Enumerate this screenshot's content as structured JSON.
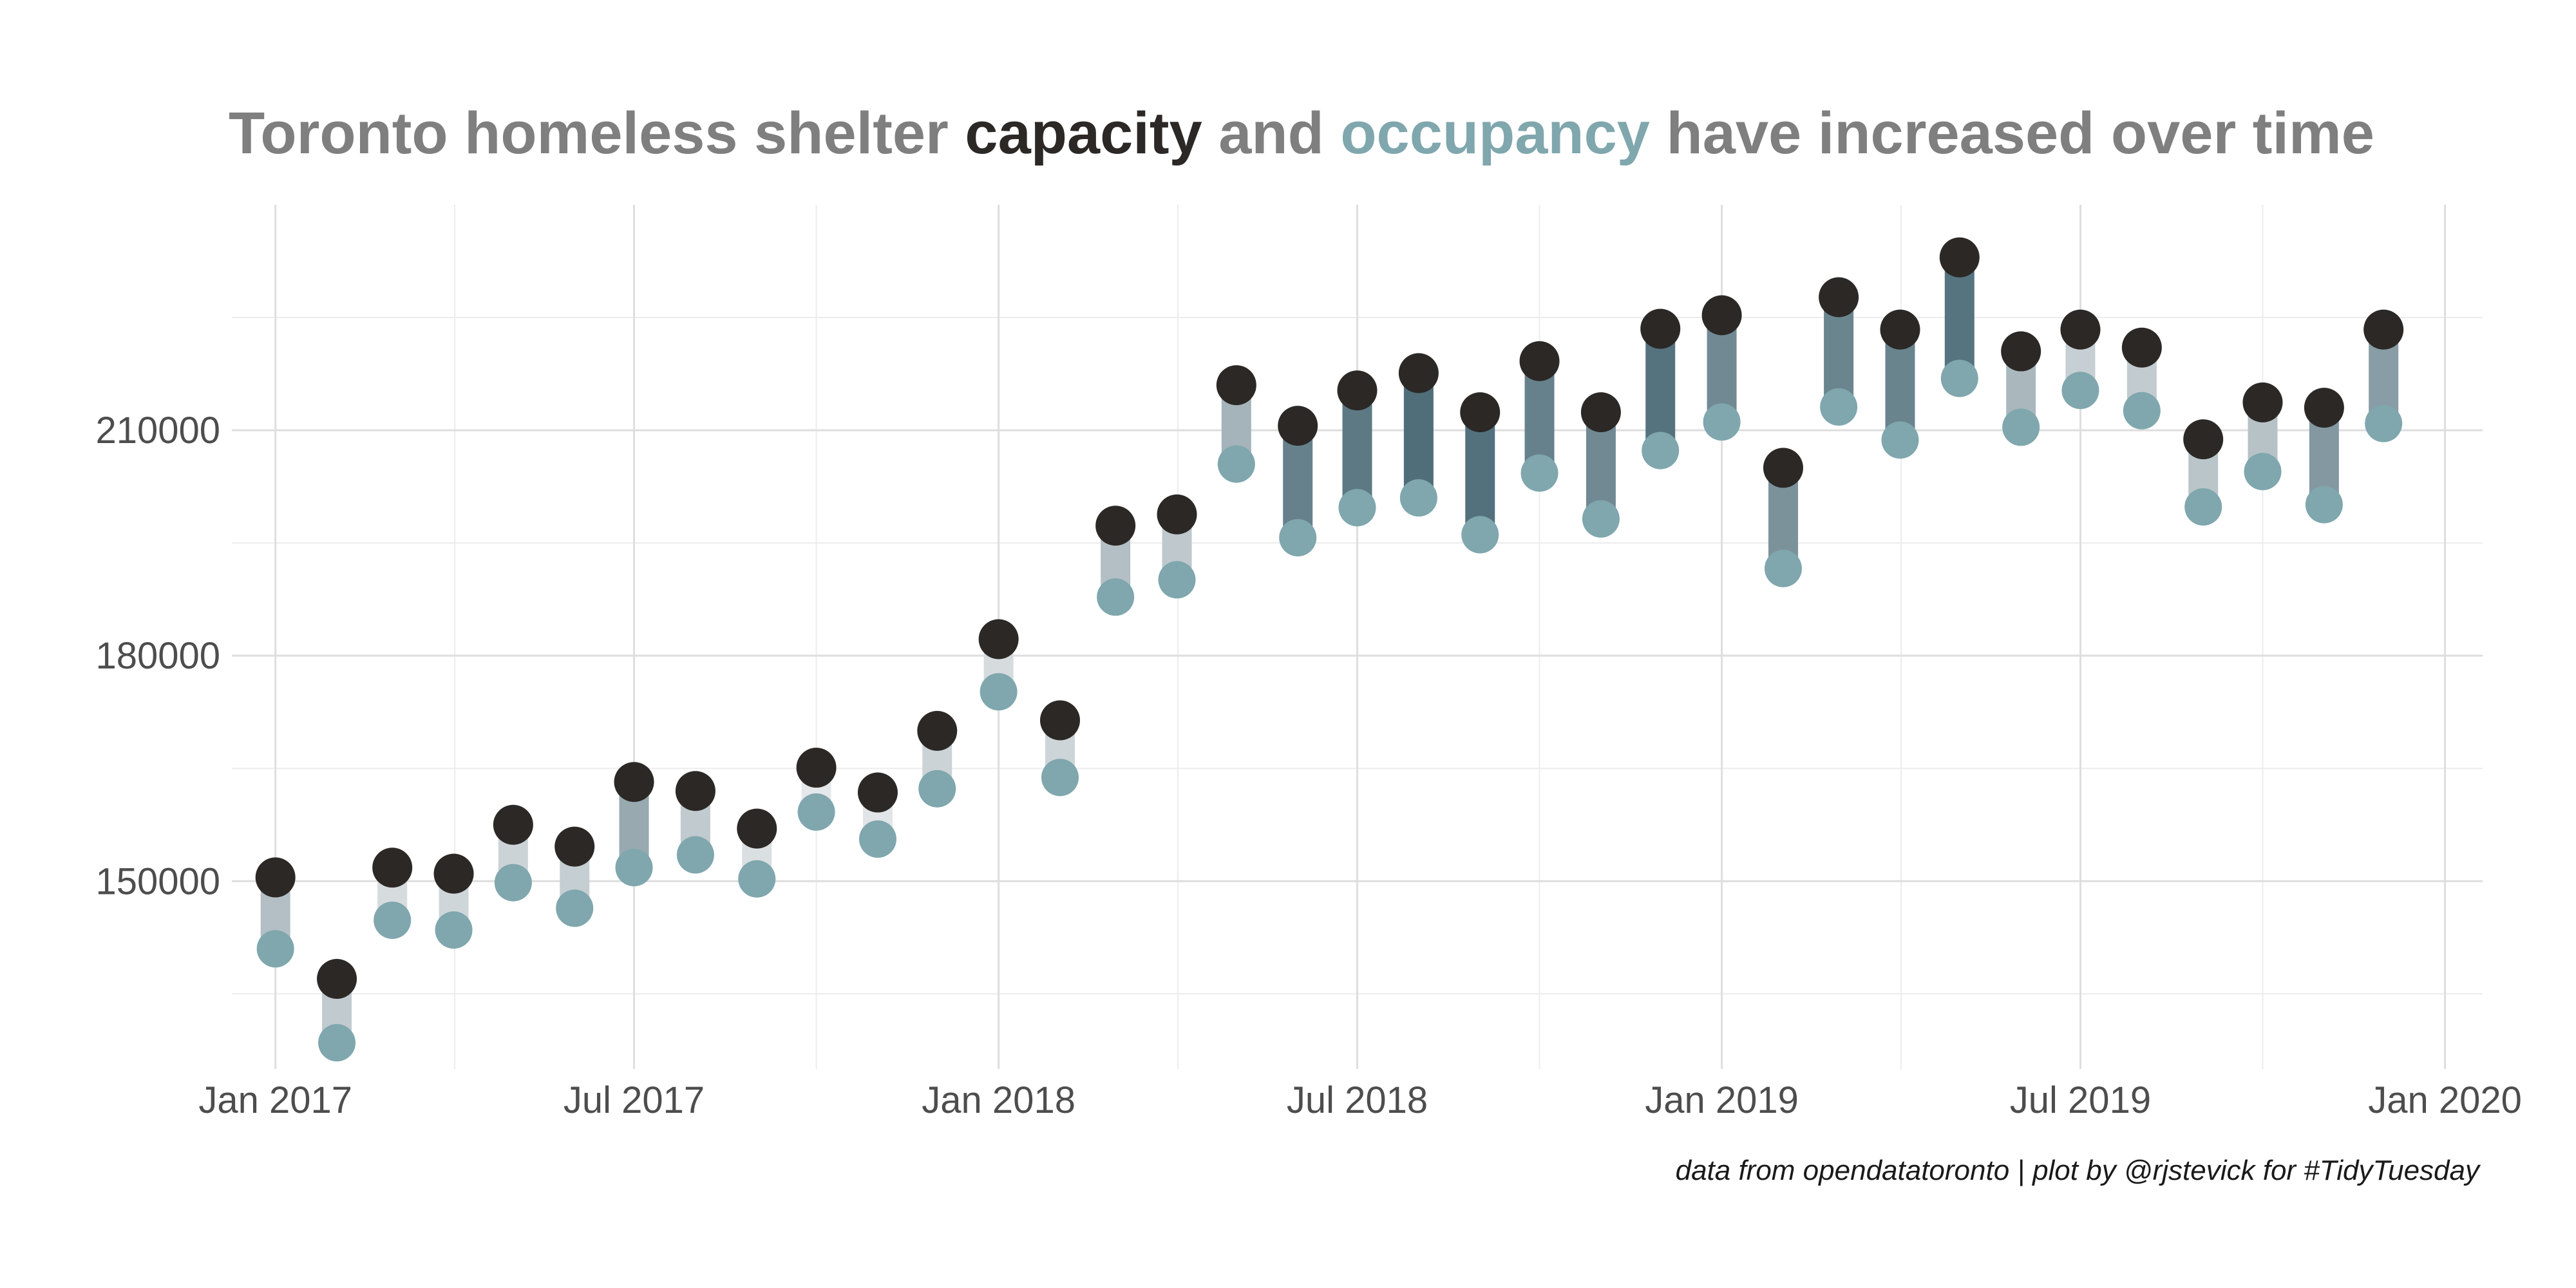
{
  "colors": {
    "title_gray": "#7f7f7f",
    "capacity": "#2b2826",
    "occupancy": "#7fa7ad",
    "segment_dark": "#4f6e7a",
    "segment_light": "#e5e8ea"
  },
  "title": {
    "part1": "Toronto homeless shelter ",
    "part2": "capacity",
    "part3": " and ",
    "part4": "occupancy",
    "part5": " have increased over time"
  },
  "caption": "data from opendatatoronto | plot by @rjstevick for #TidyTuesday",
  "chart_data": {
    "type": "dumbbell",
    "x_axis": {
      "type": "date",
      "range": [
        "2016-12-10",
        "2020-01-20"
      ],
      "ticks": [
        {
          "date": "2017-01-01",
          "label": "Jan 2017"
        },
        {
          "date": "2017-07-01",
          "label": "Jul 2017"
        },
        {
          "date": "2018-01-01",
          "label": "Jan 2018"
        },
        {
          "date": "2018-07-01",
          "label": "Jul 2018"
        },
        {
          "date": "2019-01-01",
          "label": "Jan 2019"
        },
        {
          "date": "2019-07-01",
          "label": "Jul 2019"
        },
        {
          "date": "2020-01-01",
          "label": "Jan 2020"
        }
      ]
    },
    "y_axis": {
      "range": [
        125000,
        240000
      ],
      "ticks": [
        150000,
        180000,
        210000
      ],
      "minor_ticks": [
        135000,
        165000,
        195000,
        225000
      ]
    },
    "grid": true,
    "series": [
      {
        "name": "capacity",
        "color": "#2b2826"
      },
      {
        "name": "occupancy",
        "color": "#7fa7ad"
      }
    ],
    "points": [
      {
        "date": "2017-01-01",
        "capacity": 150500,
        "occupancy": 141000
      },
      {
        "date": "2017-02-01",
        "capacity": 137000,
        "occupancy": 128500
      },
      {
        "date": "2017-03-01",
        "capacity": 151800,
        "occupancy": 144800
      },
      {
        "date": "2017-04-01",
        "capacity": 151000,
        "occupancy": 143500
      },
      {
        "date": "2017-05-01",
        "capacity": 157500,
        "occupancy": 149800
      },
      {
        "date": "2017-06-01",
        "capacity": 154600,
        "occupancy": 146400
      },
      {
        "date": "2017-07-01",
        "capacity": 163200,
        "occupancy": 151800
      },
      {
        "date": "2017-08-01",
        "capacity": 162000,
        "occupancy": 153500
      },
      {
        "date": "2017-09-01",
        "capacity": 157000,
        "occupancy": 150300
      },
      {
        "date": "2017-10-01",
        "capacity": 165100,
        "occupancy": 159200
      },
      {
        "date": "2017-11-01",
        "capacity": 161800,
        "occupancy": 155600
      },
      {
        "date": "2017-12-01",
        "capacity": 170000,
        "occupancy": 162300
      },
      {
        "date": "2018-01-01",
        "capacity": 182200,
        "occupancy": 175200
      },
      {
        "date": "2018-02-01",
        "capacity": 171400,
        "occupancy": 163800
      },
      {
        "date": "2018-03-01",
        "capacity": 197300,
        "occupancy": 187800
      },
      {
        "date": "2018-04-01",
        "capacity": 198800,
        "occupancy": 190100
      },
      {
        "date": "2018-05-01",
        "capacity": 216000,
        "occupancy": 205500
      },
      {
        "date": "2018-06-01",
        "capacity": 210600,
        "occupancy": 195700
      },
      {
        "date": "2018-07-01",
        "capacity": 215300,
        "occupancy": 199700
      },
      {
        "date": "2018-08-01",
        "capacity": 217600,
        "occupancy": 201000
      },
      {
        "date": "2018-09-01",
        "capacity": 212400,
        "occupancy": 196100
      },
      {
        "date": "2018-10-01",
        "capacity": 219200,
        "occupancy": 204300
      },
      {
        "date": "2018-11-01",
        "capacity": 212400,
        "occupancy": 198200
      },
      {
        "date": "2018-12-01",
        "capacity": 223500,
        "occupancy": 207300
      },
      {
        "date": "2019-01-01",
        "capacity": 225300,
        "occupancy": 211100
      },
      {
        "date": "2019-02-01",
        "capacity": 205000,
        "occupancy": 191600
      },
      {
        "date": "2019-03-01",
        "capacity": 227700,
        "occupancy": 213100
      },
      {
        "date": "2019-04-01",
        "capacity": 223400,
        "occupancy": 208700
      },
      {
        "date": "2019-05-01",
        "capacity": 233000,
        "occupancy": 216900
      },
      {
        "date": "2019-06-01",
        "capacity": 220500,
        "occupancy": 210400
      },
      {
        "date": "2019-07-01",
        "capacity": 223400,
        "occupancy": 215300
      },
      {
        "date": "2019-08-01",
        "capacity": 221000,
        "occupancy": 212600
      },
      {
        "date": "2019-09-01",
        "capacity": 208800,
        "occupancy": 199800
      },
      {
        "date": "2019-10-01",
        "capacity": 213700,
        "occupancy": 204500
      },
      {
        "date": "2019-11-01",
        "capacity": 213000,
        "occupancy": 200100
      },
      {
        "date": "2019-12-01",
        "capacity": 223400,
        "occupancy": 210900
      }
    ]
  }
}
